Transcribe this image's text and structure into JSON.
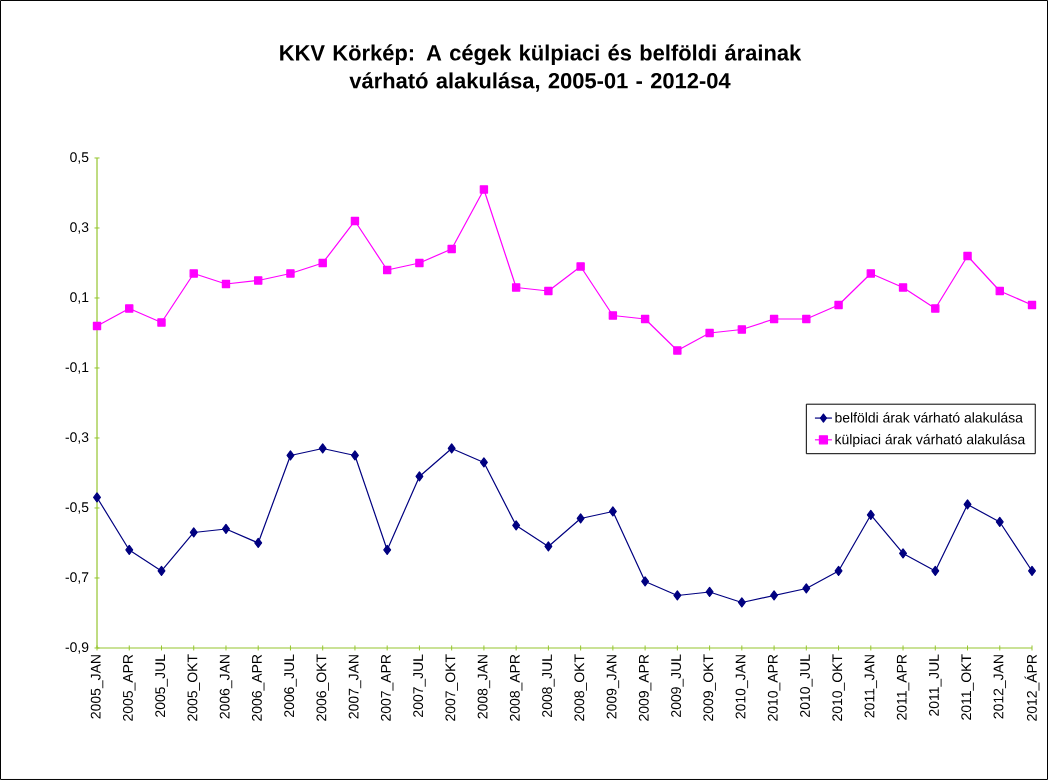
{
  "chart_data": {
    "type": "line",
    "title": "KKV Körkép: A cégek külpiaci és belföldi árainak\nvárható alakulása, 2005-01 - 2012-04",
    "categories": [
      "2005_JAN",
      "2005_APR",
      "2005_JUL",
      "2005_OKT",
      "2006_JAN",
      "2006_APR",
      "2006_JUL",
      "2006_OKT",
      "2007_JAN",
      "2007_APR",
      "2007_JUL",
      "2007_OKT",
      "2008_JAN",
      "2008_APR",
      "2008_JUL",
      "2008_OKT",
      "2009_JAN",
      "2009_APR",
      "2009_JUL",
      "2009_OKT",
      "2010_JAN",
      "2010_APR",
      "2010_JUL",
      "2010_OKT",
      "2011_JAN",
      "2011_APR",
      "2011_JUL",
      "2011_OKT",
      "2012_JAN",
      "2012_ÁPR"
    ],
    "series": [
      {
        "name": "belföldi árak várható alakulása",
        "color": "#000080",
        "marker": "diamond",
        "values": [
          -0.47,
          -0.62,
          -0.68,
          -0.57,
          -0.56,
          -0.6,
          -0.35,
          -0.33,
          -0.35,
          -0.62,
          -0.41,
          -0.33,
          -0.37,
          -0.55,
          -0.61,
          -0.53,
          -0.51,
          -0.71,
          -0.75,
          -0.74,
          -0.77,
          -0.75,
          -0.73,
          -0.68,
          -0.52,
          -0.63,
          -0.68,
          -0.49,
          -0.54,
          -0.68
        ]
      },
      {
        "name": "külpiaci árak várható alakulása",
        "color": "#ff00ff",
        "marker": "square",
        "values": [
          0.02,
          0.07,
          0.03,
          0.17,
          0.14,
          0.15,
          0.17,
          0.2,
          0.32,
          0.18,
          0.2,
          0.24,
          0.41,
          0.13,
          0.12,
          0.19,
          0.05,
          0.04,
          -0.05,
          0.0,
          0.01,
          0.04,
          0.04,
          0.08,
          0.17,
          0.13,
          0.07,
          0.22,
          0.12,
          0.08
        ]
      }
    ],
    "ylim": [
      -0.9,
      0.5
    ],
    "yticks": [
      {
        "value": -0.9,
        "label": "-0,9"
      },
      {
        "value": -0.7,
        "label": "-0,7"
      },
      {
        "value": -0.5,
        "label": "-0,5"
      },
      {
        "value": -0.3,
        "label": "-0,3"
      },
      {
        "value": -0.1,
        "label": "-0,1"
      },
      {
        "value": 0.1,
        "label": "0,1"
      },
      {
        "value": 0.3,
        "label": "0,3"
      },
      {
        "value": 0.5,
        "label": "0,5"
      }
    ],
    "grid": false,
    "legend": "right",
    "line_style": "solid"
  }
}
